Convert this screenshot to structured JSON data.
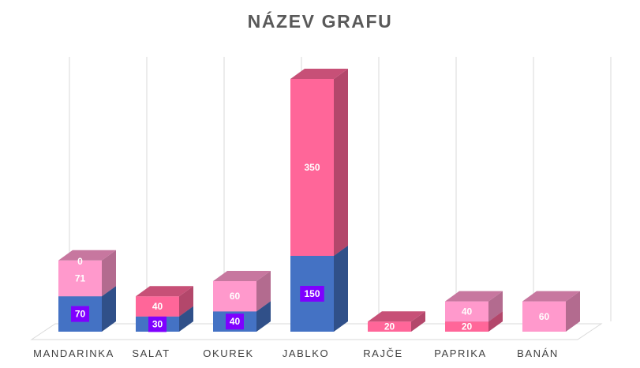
{
  "chart_data": {
    "type": "bar",
    "stacked": true,
    "style": "3d-column",
    "title": "NÁZEV GRAFU",
    "categories": [
      "MANDARINKA",
      "SALAT",
      "OKUREK",
      "JABLKO",
      "RAJČE",
      "PAPRIKA",
      "BANÁN"
    ],
    "series": [
      {
        "color": "#4472C4",
        "values": [
          70,
          30,
          40,
          150,
          0,
          0,
          0
        ]
      },
      {
        "color": "#FF6699",
        "values": [
          0,
          40,
          0,
          350,
          20,
          20,
          0
        ]
      },
      {
        "color": "#FF99CC",
        "values": [
          71,
          0,
          60,
          0,
          0,
          40,
          60
        ]
      }
    ],
    "labels": [
      [
        "70",
        "30",
        "40",
        "150",
        null,
        null,
        null
      ],
      [
        null,
        "40",
        null,
        "350",
        "20",
        "20",
        null
      ],
      [
        "71",
        null,
        "60",
        null,
        null,
        "40",
        "60"
      ]
    ],
    "extra_labels": [
      {
        "category": "MANDARINKA",
        "text": "0"
      }
    ],
    "ylim": [
      0,
      500
    ],
    "grid": true,
    "legend": "none"
  }
}
